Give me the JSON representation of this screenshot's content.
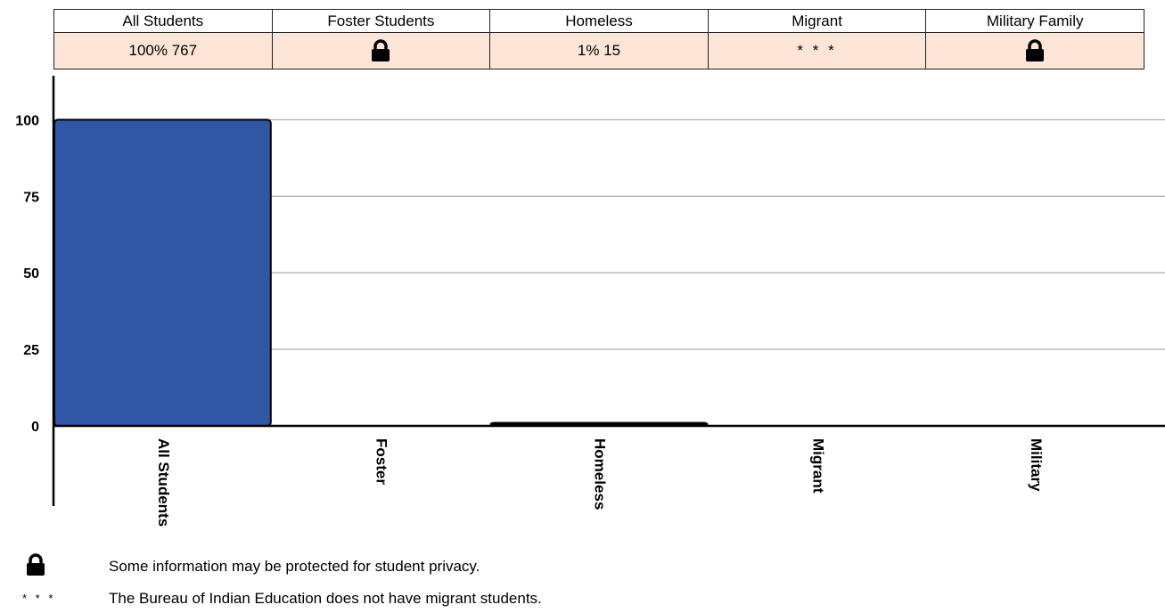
{
  "table": {
    "headers": [
      "All Students",
      "Foster Students",
      "Homeless",
      "Migrant",
      "Military Family"
    ],
    "cells": [
      {
        "type": "text",
        "text": "100%  767"
      },
      {
        "type": "lock"
      },
      {
        "type": "text",
        "text": "1%  15"
      },
      {
        "type": "stars",
        "text": "* * *"
      },
      {
        "type": "lock"
      }
    ]
  },
  "chart_data": {
    "type": "bar",
    "categories": [
      "All Students",
      "Foster",
      "Homeless",
      "Migrant",
      "Military"
    ],
    "values": [
      100,
      0,
      1,
      0,
      0
    ],
    "y_ticks": [
      0,
      25,
      50,
      75,
      100
    ],
    "ylim": [
      0,
      110
    ],
    "grid": true,
    "bar_color": "#3056a6"
  },
  "notes": {
    "privacy": "Some information may be protected for student privacy.",
    "migrant_symbol": "* * *",
    "migrant": "The Bureau of Indian Education does not have migrant students."
  },
  "icons": {
    "privacy": "lock-icon"
  }
}
